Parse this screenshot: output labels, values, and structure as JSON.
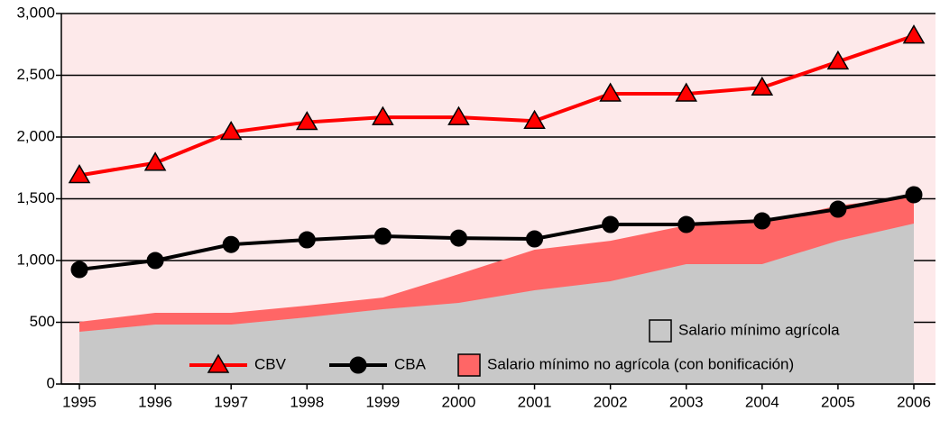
{
  "chart_data": {
    "type": "combo",
    "categories": [
      "1995",
      "1996",
      "1997",
      "1998",
      "1999",
      "2000",
      "2001",
      "2002",
      "2003",
      "2004",
      "2005",
      "2006"
    ],
    "ylim": [
      0,
      3000
    ],
    "yticks": [
      0,
      500,
      {
        "value": 1000,
        "label": "1,000"
      },
      {
        "value": 1500,
        "label": "1,500"
      },
      {
        "value": 2000,
        "label": "2,000"
      },
      {
        "value": 2500,
        "label": "2,500"
      },
      {
        "value": 3000,
        "label": "3,000"
      }
    ],
    "grid": true,
    "legend": "lower right",
    "background": "#fde9ea",
    "series": [
      {
        "name": "CBV",
        "type": "line",
        "marker": "triangle",
        "color": "#ff0000",
        "values": [
          1690,
          1790,
          2040,
          2120,
          2160,
          2160,
          2130,
          2350,
          2350,
          2400,
          2610,
          2820
        ]
      },
      {
        "name": "CBA",
        "type": "line",
        "marker": "circle",
        "color": "#000000",
        "values": [
          927,
          1000,
          1130,
          1168,
          1197,
          1182,
          1175,
          1292,
          1292,
          1321,
          1416,
          1533
        ]
      },
      {
        "name": "Salario mínimo no agrícola (con bonificación)",
        "type": "area",
        "color": "#ff6666",
        "values": [
          504,
          577,
          577,
          635,
          700,
          890,
          1088,
          1160,
          1285,
          1306,
          1445,
          1518
        ]
      },
      {
        "name": "Salario mínimo agrícola",
        "type": "area",
        "color": "#c8c8c8",
        "values": [
          423,
          482,
          482,
          540,
          606,
          657,
          759,
          832,
          971,
          971,
          1160,
          1299
        ]
      }
    ]
  }
}
